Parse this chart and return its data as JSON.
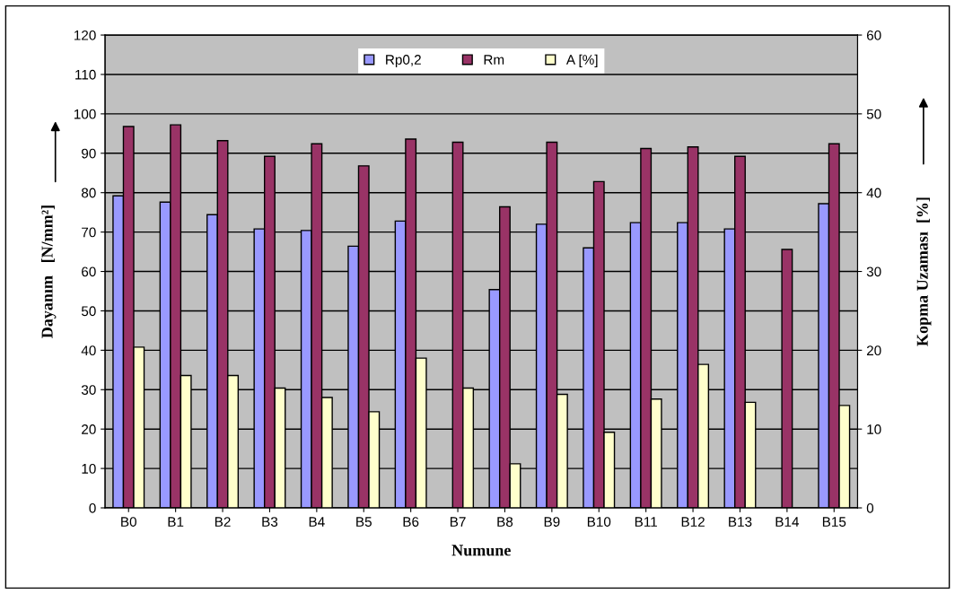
{
  "chart_data": {
    "type": "bar",
    "xlabel": "Numune",
    "ylabel": "Dayanım   [N/mm²]",
    "y2label": "Kopma Uzaması  [%]",
    "categories": [
      "B0",
      "B1",
      "B2",
      "B3",
      "B4",
      "B5",
      "B6",
      "B7",
      "B8",
      "B9",
      "B10",
      "B11",
      "B12",
      "B13",
      "B14",
      "B15"
    ],
    "series": [
      {
        "name": "Rp0,2",
        "color": "#9999ff",
        "values": [
          79.2,
          77.6,
          74.4,
          70.8,
          70.4,
          66.4,
          72.8,
          null,
          55.4,
          72,
          66,
          72.4,
          72.4,
          70.8,
          null,
          77.2
        ]
      },
      {
        "name": "Rm",
        "color": "#993366",
        "values": [
          96.8,
          97.2,
          93.2,
          89.2,
          92.4,
          86.8,
          93.6,
          92.8,
          76.4,
          92.8,
          82.8,
          91.2,
          91.6,
          89.2,
          65.6,
          92.4
        ]
      },
      {
        "name": "A [%]",
        "color": "#ffffcc",
        "axis": "y2",
        "values": [
          20.4,
          16.8,
          16.8,
          15.2,
          14,
          12.2,
          19,
          15.2,
          5.6,
          14.4,
          9.6,
          13.8,
          18.2,
          13.4,
          null,
          13
        ]
      }
    ],
    "ylim": [
      0,
      120
    ],
    "yticks": [
      0,
      10,
      20,
      30,
      40,
      50,
      60,
      70,
      80,
      90,
      100,
      110,
      120
    ],
    "y2lim": [
      0,
      60
    ],
    "y2ticks": [
      0,
      10,
      20,
      30,
      40,
      50,
      60
    ],
    "grid": "y",
    "legend": "top"
  }
}
